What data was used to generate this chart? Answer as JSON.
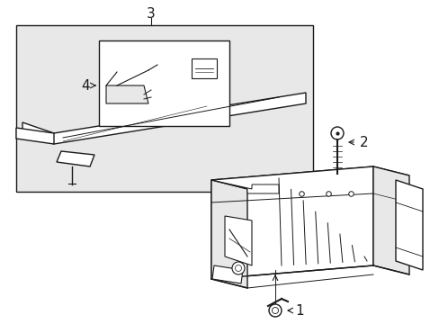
{
  "bg_color": "#ffffff",
  "line_color": "#1a1a1a",
  "light_gray": "#e8e8e8",
  "medium_gray": "#bbbbbb",
  "dark_gray": "#888888",
  "figsize": [
    4.89,
    3.6
  ],
  "dpi": 100
}
